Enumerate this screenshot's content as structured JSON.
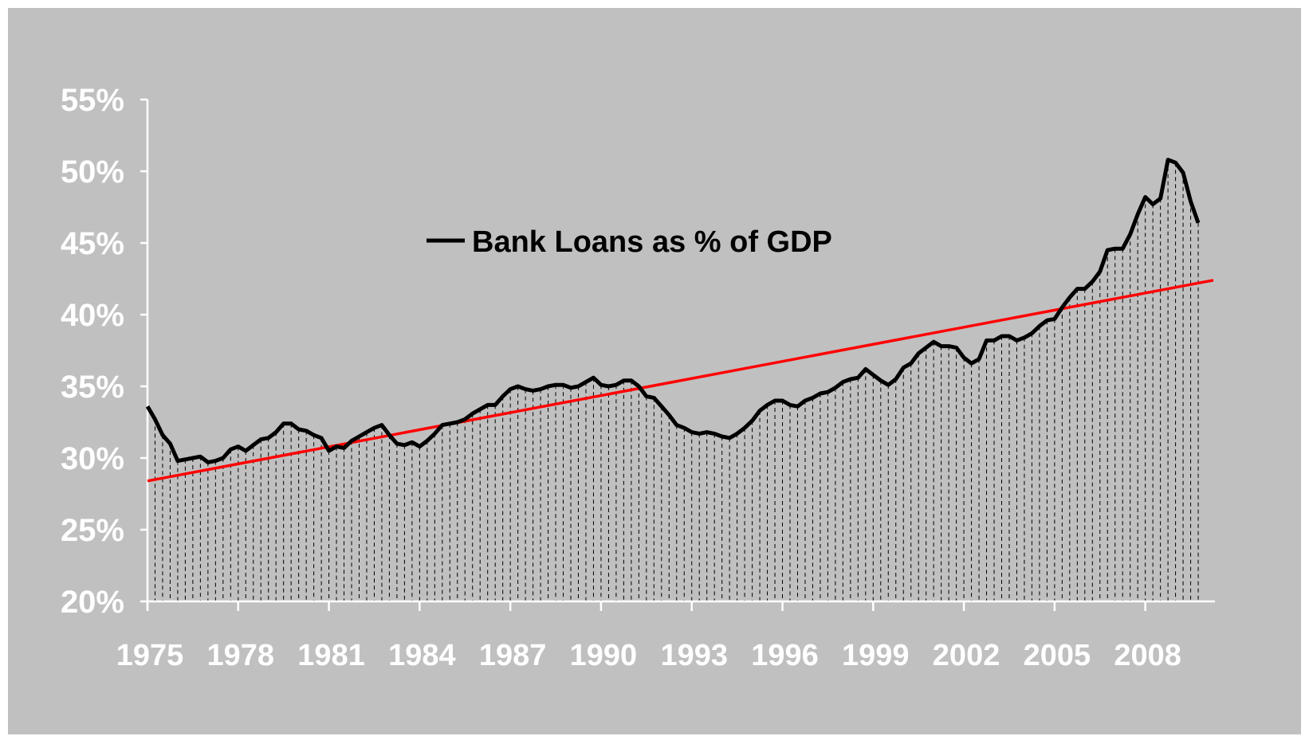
{
  "chart_data": {
    "type": "area",
    "title": "",
    "xlabel": "",
    "ylabel": "",
    "x_range": [
      1975,
      2010.25
    ],
    "ylim": [
      20,
      55
    ],
    "y_ticks": [
      20,
      25,
      30,
      35,
      40,
      45,
      50,
      55
    ],
    "y_tick_labels": [
      "20%",
      "25%",
      "30%",
      "35%",
      "40%",
      "45%",
      "50%",
      "55%"
    ],
    "x_ticks": [
      1975,
      1978,
      1981,
      1984,
      1987,
      1990,
      1993,
      1996,
      1999,
      2002,
      2005,
      2008
    ],
    "x_tick_labels": [
      "1975",
      "1978",
      "1981",
      "1984",
      "1987",
      "1990",
      "1993",
      "1996",
      "1999",
      "2002",
      "2005",
      "2008"
    ],
    "grid": false,
    "legend": {
      "position": "center",
      "entries": [
        "Bank Loans as % of GDP"
      ]
    },
    "colors": {
      "background": "#c0c0c0",
      "series": "#000000",
      "trend": "#ff0000",
      "hatch": "#000000",
      "tick_text": "#ffffff"
    },
    "series": [
      {
        "name": "Bank Loans as % of GDP",
        "style": "line-with-hatched-area",
        "points": [
          [
            1975.0,
            33.6
          ],
          [
            1975.25,
            32.7
          ],
          [
            1975.5,
            31.6
          ],
          [
            1975.75,
            31.0
          ],
          [
            1976.0,
            29.8
          ],
          [
            1976.25,
            29.9
          ],
          [
            1976.5,
            30.0
          ],
          [
            1976.75,
            30.1
          ],
          [
            1977.0,
            29.7
          ],
          [
            1977.25,
            29.8
          ],
          [
            1977.5,
            30.0
          ],
          [
            1977.75,
            30.6
          ],
          [
            1978.0,
            30.8
          ],
          [
            1978.25,
            30.5
          ],
          [
            1978.5,
            30.9
          ],
          [
            1978.75,
            31.3
          ],
          [
            1979.0,
            31.4
          ],
          [
            1979.25,
            31.8
          ],
          [
            1979.5,
            32.4
          ],
          [
            1979.75,
            32.4
          ],
          [
            1980.0,
            32.0
          ],
          [
            1980.25,
            31.9
          ],
          [
            1980.5,
            31.6
          ],
          [
            1980.75,
            31.4
          ],
          [
            1981.0,
            30.5
          ],
          [
            1981.25,
            30.8
          ],
          [
            1981.5,
            30.7
          ],
          [
            1981.75,
            31.2
          ],
          [
            1982.0,
            31.5
          ],
          [
            1982.25,
            31.8
          ],
          [
            1982.5,
            32.1
          ],
          [
            1982.75,
            32.3
          ],
          [
            1983.0,
            31.6
          ],
          [
            1983.25,
            31.0
          ],
          [
            1983.5,
            30.9
          ],
          [
            1983.75,
            31.1
          ],
          [
            1984.0,
            30.8
          ],
          [
            1984.25,
            31.2
          ],
          [
            1984.5,
            31.7
          ],
          [
            1984.75,
            32.3
          ],
          [
            1985.0,
            32.4
          ],
          [
            1985.25,
            32.5
          ],
          [
            1985.5,
            32.7
          ],
          [
            1985.75,
            33.1
          ],
          [
            1986.0,
            33.4
          ],
          [
            1986.25,
            33.7
          ],
          [
            1986.5,
            33.7
          ],
          [
            1986.75,
            34.3
          ],
          [
            1987.0,
            34.8
          ],
          [
            1987.25,
            35.0
          ],
          [
            1987.5,
            34.8
          ],
          [
            1987.75,
            34.7
          ],
          [
            1988.0,
            34.8
          ],
          [
            1988.25,
            35.0
          ],
          [
            1988.5,
            35.1
          ],
          [
            1988.75,
            35.1
          ],
          [
            1989.0,
            34.9
          ],
          [
            1989.25,
            35.0
          ],
          [
            1989.5,
            35.3
          ],
          [
            1989.75,
            35.6
          ],
          [
            1990.0,
            35.1
          ],
          [
            1990.25,
            35.0
          ],
          [
            1990.5,
            35.1
          ],
          [
            1990.75,
            35.4
          ],
          [
            1991.0,
            35.4
          ],
          [
            1991.25,
            35.0
          ],
          [
            1991.5,
            34.3
          ],
          [
            1991.75,
            34.2
          ],
          [
            1992.0,
            33.6
          ],
          [
            1992.25,
            33.0
          ],
          [
            1992.5,
            32.3
          ],
          [
            1992.75,
            32.1
          ],
          [
            1993.0,
            31.8
          ],
          [
            1993.25,
            31.7
          ],
          [
            1993.5,
            31.8
          ],
          [
            1993.75,
            31.7
          ],
          [
            1994.0,
            31.5
          ],
          [
            1994.25,
            31.4
          ],
          [
            1994.5,
            31.7
          ],
          [
            1994.75,
            32.1
          ],
          [
            1995.0,
            32.6
          ],
          [
            1995.25,
            33.3
          ],
          [
            1995.5,
            33.7
          ],
          [
            1995.75,
            34.0
          ],
          [
            1996.0,
            34.0
          ],
          [
            1996.25,
            33.7
          ],
          [
            1996.5,
            33.6
          ],
          [
            1996.75,
            34.0
          ],
          [
            1997.0,
            34.2
          ],
          [
            1997.25,
            34.5
          ],
          [
            1997.5,
            34.6
          ],
          [
            1997.75,
            34.9
          ],
          [
            1998.0,
            35.3
          ],
          [
            1998.25,
            35.5
          ],
          [
            1998.5,
            35.6
          ],
          [
            1998.75,
            36.2
          ],
          [
            1999.0,
            35.8
          ],
          [
            1999.25,
            35.4
          ],
          [
            1999.5,
            35.1
          ],
          [
            1999.75,
            35.5
          ],
          [
            2000.0,
            36.3
          ],
          [
            2000.25,
            36.6
          ],
          [
            2000.5,
            37.3
          ],
          [
            2000.75,
            37.7
          ],
          [
            2001.0,
            38.1
          ],
          [
            2001.25,
            37.8
          ],
          [
            2001.5,
            37.8
          ],
          [
            2001.75,
            37.7
          ],
          [
            2002.0,
            37.0
          ],
          [
            2002.25,
            36.6
          ],
          [
            2002.5,
            36.9
          ],
          [
            2002.75,
            38.2
          ],
          [
            2003.0,
            38.2
          ],
          [
            2003.25,
            38.5
          ],
          [
            2003.5,
            38.5
          ],
          [
            2003.75,
            38.2
          ],
          [
            2004.0,
            38.4
          ],
          [
            2004.25,
            38.7
          ],
          [
            2004.5,
            39.2
          ],
          [
            2004.75,
            39.6
          ],
          [
            2005.0,
            39.7
          ],
          [
            2005.25,
            40.5
          ],
          [
            2005.5,
            41.2
          ],
          [
            2005.75,
            41.8
          ],
          [
            2006.0,
            41.8
          ],
          [
            2006.25,
            42.3
          ],
          [
            2006.5,
            43.0
          ],
          [
            2006.75,
            44.5
          ],
          [
            2007.0,
            44.6
          ],
          [
            2007.25,
            44.6
          ],
          [
            2007.5,
            45.6
          ],
          [
            2007.75,
            47.0
          ],
          [
            2008.0,
            48.2
          ],
          [
            2008.25,
            47.7
          ],
          [
            2008.5,
            48.1
          ],
          [
            2008.75,
            50.8
          ],
          [
            2009.0,
            50.6
          ],
          [
            2009.25,
            49.9
          ],
          [
            2009.5,
            47.9
          ],
          [
            2009.75,
            46.4
          ]
        ]
      },
      {
        "name": "",
        "style": "trend-line",
        "points": [
          [
            1975.0,
            28.4
          ],
          [
            2010.25,
            42.4
          ]
        ]
      }
    ]
  }
}
